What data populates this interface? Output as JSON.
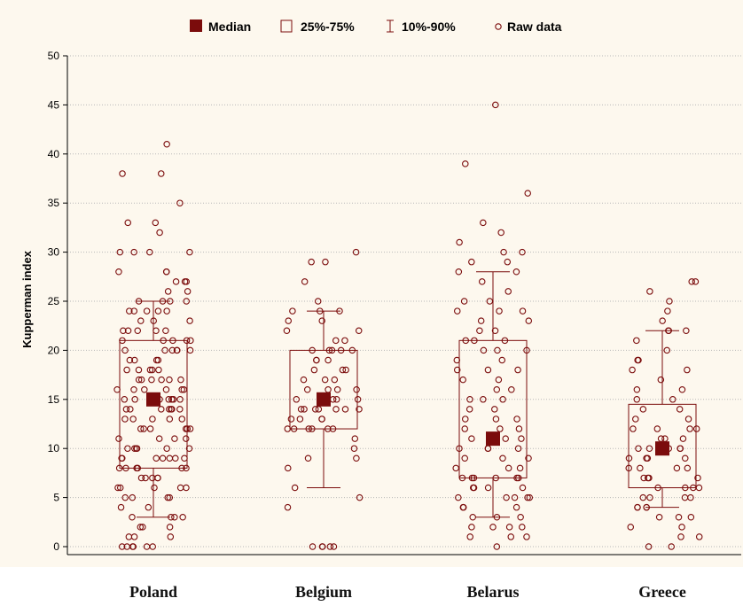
{
  "legend": {
    "median": "Median",
    "box": "25%-75%",
    "whisker": "10%-90%",
    "raw": "Raw data"
  },
  "colors": {
    "accent": "#7b0c0c",
    "grid": "#b8b8b8",
    "background": "#fdf8ee"
  },
  "chart_data": {
    "type": "box",
    "title": "",
    "xlabel": "",
    "ylabel": "Kupperman index",
    "ylim": [
      0,
      50
    ],
    "yticks": [
      0,
      5,
      10,
      15,
      20,
      25,
      30,
      35,
      40,
      45,
      50
    ],
    "grid": true,
    "legend_position": "top",
    "categories": [
      "Poland",
      "Belgium",
      "Belarus",
      "Greece"
    ],
    "series": [
      {
        "category": "Poland",
        "median": 15,
        "q1": 8,
        "q3": 21,
        "p10": 3,
        "p90": 25,
        "raw": [
          0,
          0,
          0,
          0,
          0,
          0,
          1,
          1,
          1,
          2,
          2,
          2,
          3,
          3,
          3,
          3,
          4,
          4,
          5,
          5,
          5,
          5,
          6,
          6,
          6,
          6,
          6,
          7,
          7,
          7,
          7,
          7,
          8,
          8,
          8,
          8,
          8,
          8,
          9,
          9,
          9,
          9,
          9,
          9,
          9,
          10,
          10,
          10,
          10,
          10,
          10,
          11,
          11,
          11,
          11,
          12,
          12,
          12,
          12,
          12,
          12,
          13,
          13,
          13,
          13,
          13,
          14,
          14,
          14,
          14,
          14,
          14,
          14,
          15,
          15,
          15,
          15,
          15,
          15,
          15,
          15,
          16,
          16,
          16,
          16,
          16,
          16,
          17,
          17,
          17,
          17,
          17,
          17,
          18,
          18,
          18,
          18,
          18,
          19,
          19,
          19,
          19,
          20,
          20,
          20,
          20,
          20,
          20,
          21,
          21,
          21,
          21,
          21,
          22,
          22,
          22,
          22,
          22,
          23,
          23,
          23,
          24,
          24,
          24,
          24,
          24,
          25,
          25,
          25,
          25,
          26,
          26,
          27,
          27,
          27,
          28,
          28,
          28,
          30,
          30,
          30,
          30,
          32,
          33,
          33,
          35,
          38,
          38,
          41
        ]
      },
      {
        "category": "Belgium",
        "median": 15,
        "q1": 12,
        "q3": 20,
        "p10": 6,
        "p90": 24,
        "raw": [
          0,
          0,
          0,
          0,
          0,
          4,
          5,
          6,
          8,
          9,
          9,
          10,
          11,
          12,
          12,
          12,
          12,
          12,
          12,
          13,
          13,
          13,
          13,
          14,
          14,
          14,
          14,
          14,
          14,
          14,
          15,
          15,
          15,
          15,
          15,
          16,
          16,
          16,
          16,
          17,
          17,
          17,
          18,
          18,
          18,
          19,
          19,
          19,
          20,
          20,
          20,
          20,
          20,
          21,
          21,
          22,
          22,
          23,
          23,
          24,
          24,
          24,
          25,
          27,
          29,
          29,
          30
        ]
      },
      {
        "category": "Belarus",
        "median": 11,
        "q1": 7,
        "q3": 21,
        "p10": 3,
        "p90": 28,
        "raw": [
          0,
          1,
          1,
          1,
          2,
          2,
          2,
          2,
          3,
          3,
          3,
          4,
          4,
          4,
          5,
          5,
          5,
          5,
          5,
          6,
          6,
          6,
          6,
          7,
          7,
          7,
          7,
          7,
          7,
          8,
          8,
          8,
          9,
          9,
          9,
          10,
          10,
          10,
          10,
          11,
          11,
          11,
          11,
          12,
          12,
          12,
          13,
          13,
          13,
          14,
          14,
          15,
          15,
          15,
          16,
          16,
          17,
          17,
          18,
          18,
          18,
          19,
          19,
          20,
          20,
          20,
          21,
          21,
          21,
          22,
          22,
          23,
          23,
          24,
          24,
          24,
          25,
          25,
          26,
          27,
          28,
          28,
          29,
          29,
          30,
          30,
          31,
          32,
          33,
          36,
          39,
          45
        ]
      },
      {
        "category": "Greece",
        "median": 10,
        "q1": 6,
        "q3": 14.5,
        "p10": 4,
        "p90": 22,
        "raw": [
          0,
          0,
          1,
          1,
          2,
          2,
          3,
          3,
          3,
          4,
          4,
          4,
          4,
          5,
          5,
          5,
          5,
          6,
          6,
          6,
          6,
          7,
          7,
          7,
          7,
          8,
          8,
          8,
          8,
          9,
          9,
          9,
          9,
          10,
          10,
          10,
          10,
          10,
          11,
          11,
          11,
          12,
          12,
          12,
          12,
          13,
          13,
          14,
          14,
          15,
          15,
          16,
          16,
          17,
          18,
          18,
          19,
          19,
          20,
          21,
          22,
          22,
          22,
          23,
          24,
          25,
          26,
          27,
          27
        ]
      }
    ]
  }
}
